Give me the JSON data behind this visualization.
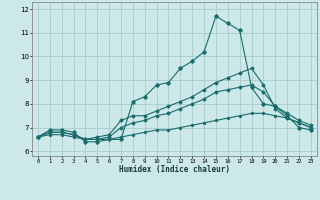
{
  "title": "",
  "xlabel": "Humidex (Indice chaleur)",
  "bg_color": "#cce8e8",
  "grid_color": "#aacccc",
  "line_color": "#1a6b6b",
  "xlim": [
    -0.5,
    23.5
  ],
  "ylim": [
    5.8,
    12.3
  ],
  "yticks": [
    6,
    7,
    8,
    9,
    10,
    11,
    12
  ],
  "xticks": [
    0,
    1,
    2,
    3,
    4,
    5,
    6,
    7,
    8,
    9,
    10,
    11,
    12,
    13,
    14,
    15,
    16,
    17,
    18,
    19,
    20,
    21,
    22,
    23
  ],
  "curve1_x": [
    0,
    1,
    2,
    3,
    4,
    5,
    6,
    7,
    8,
    9,
    10,
    11,
    12,
    13,
    14,
    15,
    16,
    17,
    18,
    19,
    20,
    21,
    22,
    23
  ],
  "curve1_y": [
    6.6,
    6.9,
    6.9,
    6.8,
    6.4,
    6.4,
    6.5,
    6.5,
    8.1,
    8.3,
    8.8,
    8.9,
    9.5,
    9.8,
    10.2,
    11.7,
    11.4,
    11.1,
    8.7,
    8.0,
    7.9,
    7.5,
    7.0,
    6.9
  ],
  "curve2_x": [
    0,
    1,
    2,
    3,
    4,
    5,
    6,
    7,
    8,
    9,
    10,
    11,
    12,
    13,
    14,
    15,
    16,
    17,
    18,
    19,
    20,
    21,
    22,
    23
  ],
  "curve2_y": [
    6.6,
    6.8,
    6.8,
    6.7,
    6.5,
    6.6,
    6.7,
    7.3,
    7.5,
    7.5,
    7.7,
    7.9,
    8.1,
    8.3,
    8.6,
    8.9,
    9.1,
    9.3,
    9.5,
    8.8,
    7.8,
    7.4,
    7.2,
    7.0
  ],
  "curve3_x": [
    0,
    1,
    2,
    3,
    4,
    5,
    6,
    7,
    8,
    9,
    10,
    11,
    12,
    13,
    14,
    15,
    16,
    17,
    18,
    19,
    20,
    21,
    22,
    23
  ],
  "curve3_y": [
    6.6,
    6.8,
    6.8,
    6.7,
    6.5,
    6.5,
    6.6,
    7.0,
    7.2,
    7.3,
    7.5,
    7.6,
    7.8,
    8.0,
    8.2,
    8.5,
    8.6,
    8.7,
    8.8,
    8.5,
    7.9,
    7.6,
    7.3,
    7.1
  ],
  "curve4_x": [
    0,
    1,
    2,
    3,
    4,
    5,
    6,
    7,
    8,
    9,
    10,
    11,
    12,
    13,
    14,
    15,
    16,
    17,
    18,
    19,
    20,
    21,
    22,
    23
  ],
  "curve4_y": [
    6.6,
    6.7,
    6.7,
    6.6,
    6.5,
    6.5,
    6.5,
    6.6,
    6.7,
    6.8,
    6.9,
    6.9,
    7.0,
    7.1,
    7.2,
    7.3,
    7.4,
    7.5,
    7.6,
    7.6,
    7.5,
    7.4,
    7.2,
    7.0
  ]
}
